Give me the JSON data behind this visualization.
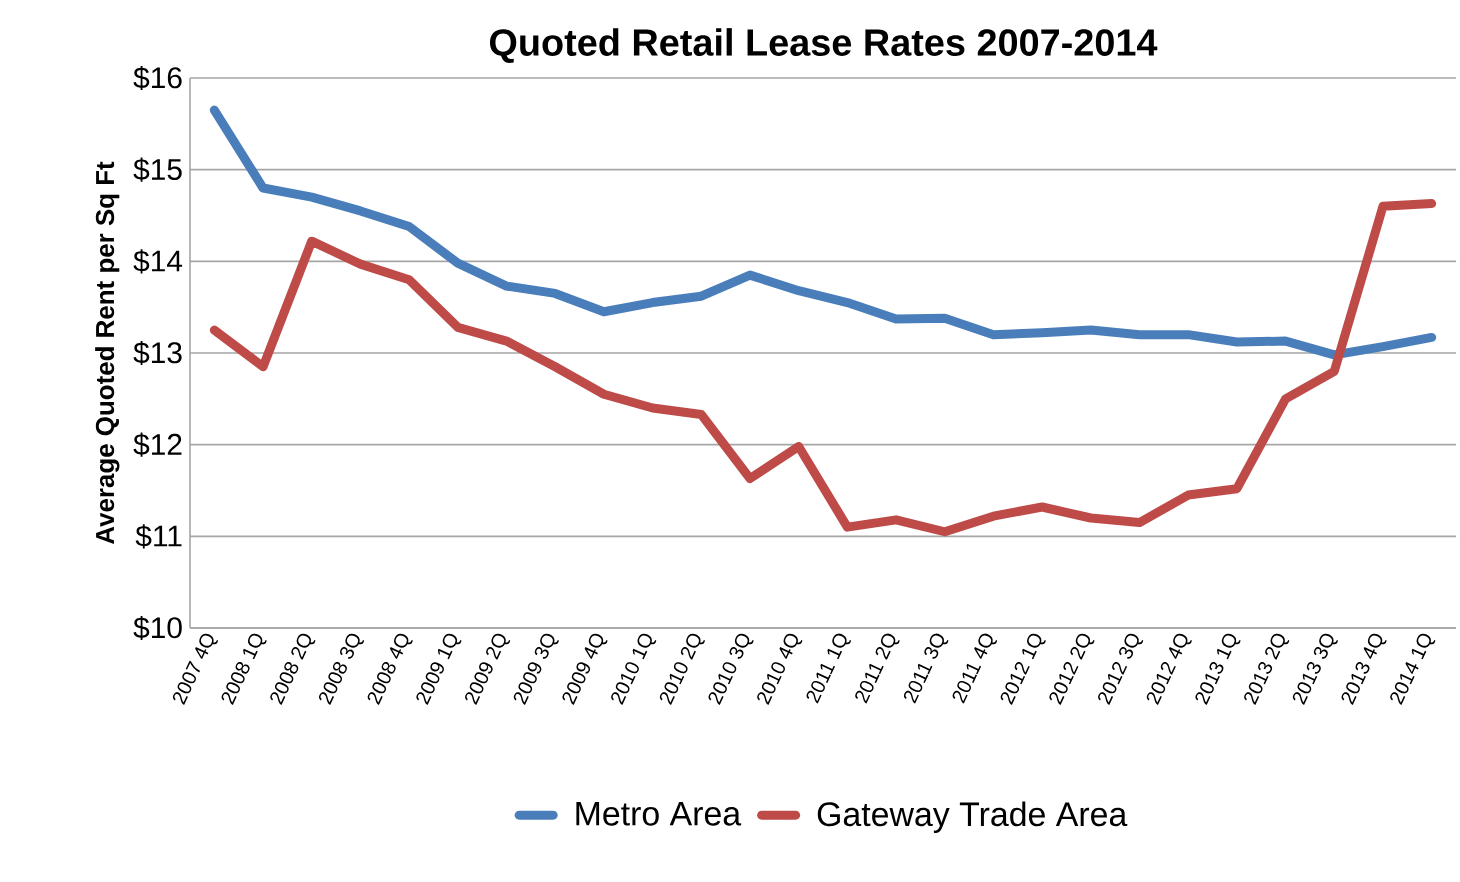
{
  "chart_data": {
    "type": "line",
    "title": "Quoted Retail Lease Rates 2007-2014",
    "ylabel": "Average Quoted Rent per Sq Ft",
    "categories": [
      "2007 4Q",
      "2008 1Q",
      "2008 2Q",
      "2008 3Q",
      "2008 4Q",
      "2009 1Q",
      "2009 2Q",
      "2009 3Q",
      "2009 4Q",
      "2010 1Q",
      "2010 2Q",
      "2010 3Q",
      "2010 4Q",
      "2011 1Q",
      "2011 2Q",
      "2011 3Q",
      "2011 4Q",
      "2012 1Q",
      "2012 2Q",
      "2012 3Q",
      "2012 4Q",
      "2013 1Q",
      "2013 2Q",
      "2013 3Q",
      "2013 4Q",
      "2014 1Q"
    ],
    "series": [
      {
        "name": "Metro Area",
        "color": "#4a7ebb",
        "values": [
          15.65,
          14.8,
          14.7,
          14.55,
          14.38,
          13.98,
          13.73,
          13.65,
          13.45,
          13.55,
          13.62,
          13.85,
          13.68,
          13.55,
          13.37,
          13.38,
          13.2,
          13.22,
          13.25,
          13.2,
          13.2,
          13.12,
          13.13,
          12.98,
          13.07,
          13.17
        ]
      },
      {
        "name": "Gateway Trade Area",
        "color": "#be4b48",
        "values": [
          13.25,
          12.85,
          14.22,
          13.97,
          13.8,
          13.28,
          13.13,
          12.85,
          12.55,
          12.4,
          12.33,
          11.63,
          11.98,
          11.1,
          11.18,
          11.05,
          11.22,
          11.32,
          11.2,
          11.15,
          11.45,
          11.52,
          12.5,
          12.8,
          14.6,
          14.63
        ]
      }
    ],
    "ylim": [
      10,
      16
    ],
    "yticks": [
      {
        "value": 10,
        "label": "$10"
      },
      {
        "value": 11,
        "label": "$11"
      },
      {
        "value": 12,
        "label": "$12"
      },
      {
        "value": 13,
        "label": "$13"
      },
      {
        "value": 14,
        "label": "$14"
      },
      {
        "value": 15,
        "label": "$15"
      },
      {
        "value": 16,
        "label": "$16"
      }
    ],
    "grid": "y",
    "legend": "bottom",
    "marker": "none",
    "line_style": "solid"
  }
}
